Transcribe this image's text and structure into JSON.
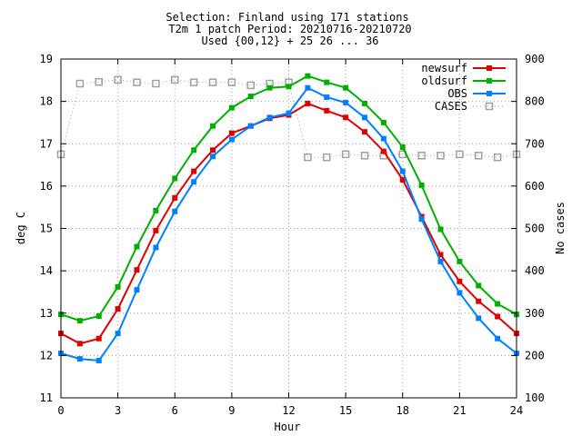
{
  "title_lines": [
    "Selection: Finland using   171 stations",
    "T2m 1 patch   Period: 20210716-20210720",
    "Used {00,12} + 25 26 ... 36"
  ],
  "chart_data": {
    "type": "line",
    "xlabel": "Hour",
    "ylabel": "deg C",
    "y2label": "No cases",
    "xlim": [
      0,
      24
    ],
    "ylim": [
      11,
      19
    ],
    "y2lim": [
      100,
      900
    ],
    "xticks": [
      "0",
      "3",
      "6",
      "9",
      "12",
      "15",
      "18",
      "21",
      "24"
    ],
    "yticks": [
      "11",
      "12",
      "13",
      "14",
      "15",
      "16",
      "17",
      "18",
      "19"
    ],
    "y2ticks": [
      "100",
      "200",
      "300",
      "400",
      "500",
      "600",
      "700",
      "800",
      "900"
    ],
    "grid": true,
    "legend_position": "top-right",
    "x": [
      0,
      1,
      2,
      3,
      4,
      5,
      6,
      7,
      8,
      9,
      10,
      11,
      12,
      13,
      14,
      15,
      16,
      17,
      18,
      19,
      20,
      21,
      22,
      23,
      24
    ],
    "series": [
      {
        "name": "newsurf",
        "color": "#e00000",
        "marker": "square-filled",
        "axis": "y",
        "values": [
          12.52,
          12.28,
          12.4,
          13.1,
          14.02,
          14.95,
          15.72,
          16.35,
          16.85,
          17.25,
          17.42,
          17.6,
          17.68,
          17.95,
          17.78,
          17.62,
          17.28,
          16.82,
          16.15,
          15.28,
          14.38,
          13.75,
          13.28,
          12.92,
          12.52
        ]
      },
      {
        "name": "oldsurf",
        "color": "#00b000",
        "marker": "square-filled",
        "axis": "y",
        "values": [
          12.97,
          12.82,
          12.93,
          13.62,
          14.57,
          15.42,
          16.18,
          16.85,
          17.42,
          17.85,
          18.12,
          18.32,
          18.35,
          18.6,
          18.45,
          18.32,
          17.95,
          17.5,
          16.92,
          16.02,
          14.98,
          14.22,
          13.65,
          13.22,
          12.97
        ]
      },
      {
        "name": "OBS",
        "color": "#0080ff",
        "marker": "square-filled",
        "axis": "y",
        "values": [
          12.05,
          11.92,
          11.88,
          12.52,
          13.55,
          14.55,
          15.4,
          16.1,
          16.7,
          17.1,
          17.42,
          17.62,
          17.72,
          18.32,
          18.1,
          17.97,
          17.62,
          17.12,
          16.35,
          15.22,
          14.22,
          13.48,
          12.88,
          12.4,
          12.05
        ]
      },
      {
        "name": "CASES",
        "color": "#a0a0a0",
        "marker": "square-open",
        "line": "dotted",
        "axis": "y2",
        "values": [
          675,
          842,
          846,
          851,
          845,
          842,
          851,
          845,
          845,
          845,
          838,
          842,
          845,
          668,
          668,
          675,
          672,
          672,
          675,
          672,
          672,
          675,
          672,
          668,
          675
        ]
      }
    ]
  }
}
